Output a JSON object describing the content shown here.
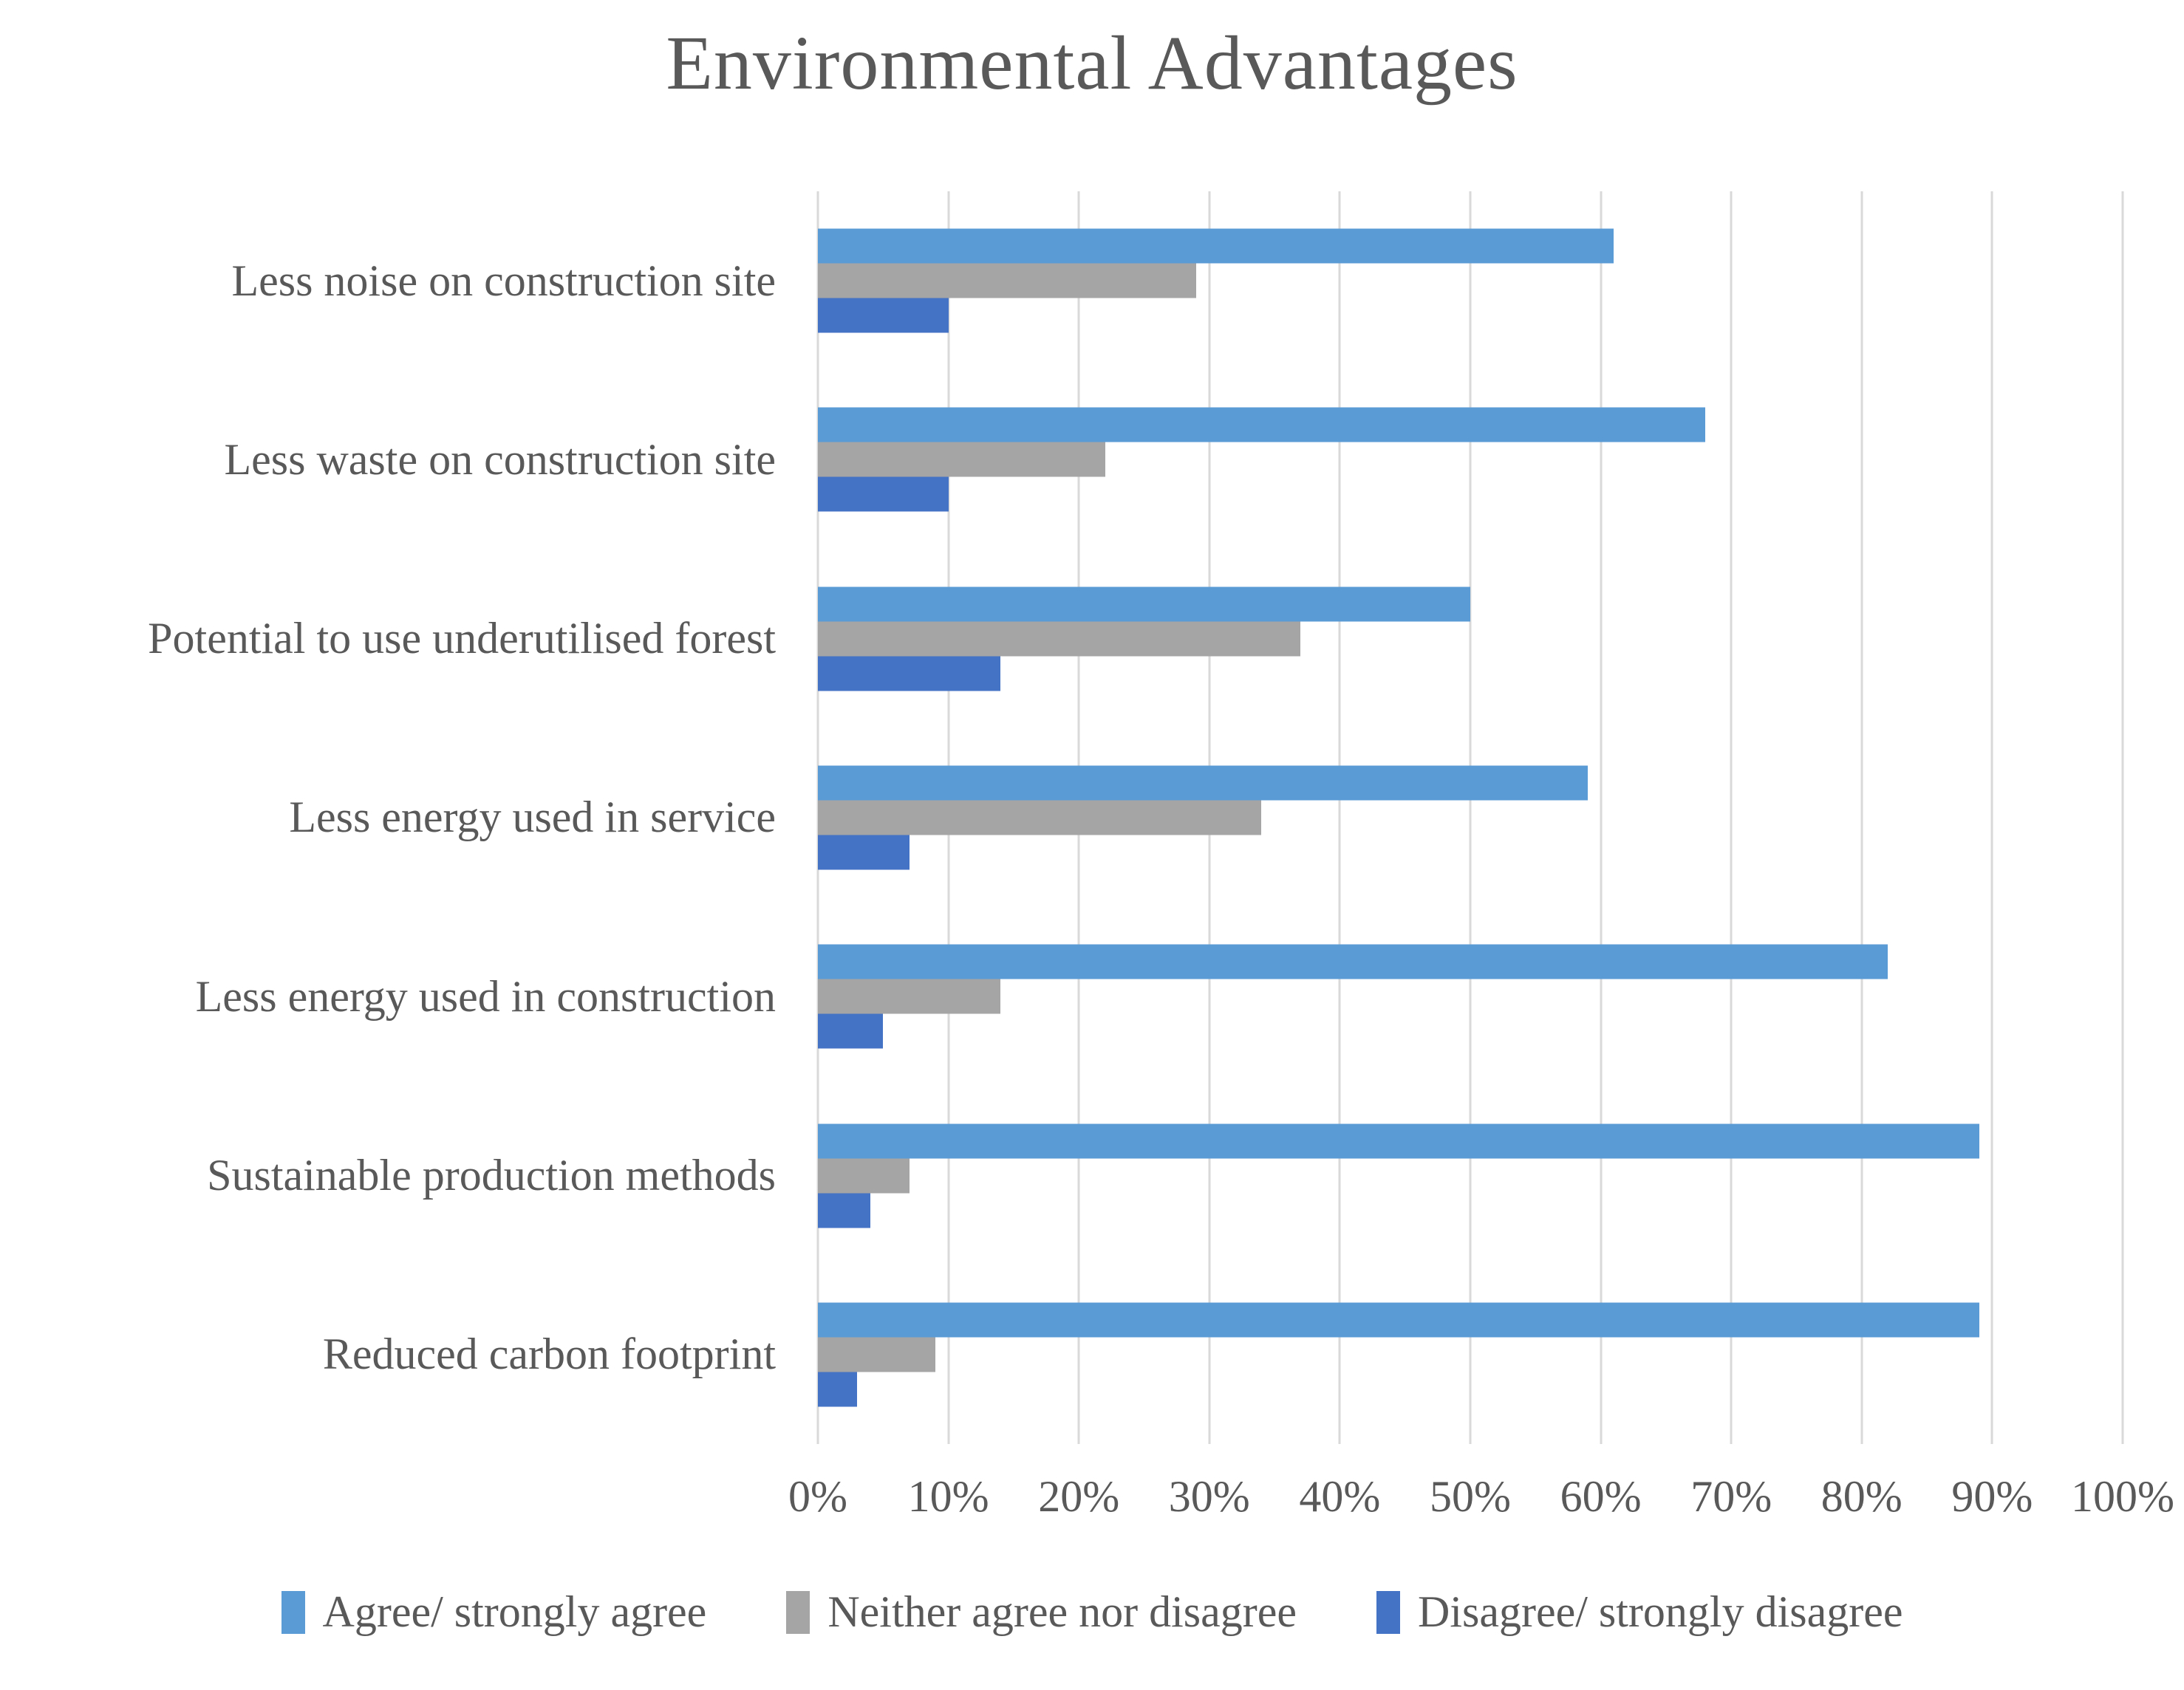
{
  "title": "Environmental Advantages",
  "colors": {
    "text": "#595959",
    "gridline": "#D9D9D9",
    "agree": "#5B9BD5",
    "neither": "#A5A5A5",
    "disagree": "#4472C4"
  },
  "chart_data": {
    "type": "bar",
    "orientation": "horizontal",
    "title": "Environmental Advantages",
    "categories": [
      "Less noise on construction site",
      "Less waste on construction site",
      "Potential to use underutilised forest",
      "Less energy used in service",
      "Less energy used in construction",
      "Sustainable production methods",
      "Reduced carbon footprint"
    ],
    "series": [
      {
        "name": "Agree/ strongly agree",
        "color": "#5B9BD5",
        "values": [
          61,
          68,
          50,
          59,
          82,
          89,
          89
        ]
      },
      {
        "name": "Neither agree nor disagree",
        "color": "#A5A5A5",
        "values": [
          29,
          22,
          37,
          34,
          14,
          7,
          9
        ]
      },
      {
        "name": "Disagree/ strongly disagree",
        "color": "#4472C4",
        "values": [
          10,
          10,
          14,
          7,
          5,
          4,
          3
        ]
      }
    ],
    "x_axis": {
      "min": 0,
      "max": 100,
      "tick_step": 10,
      "ticks": [
        "0%",
        "10%",
        "20%",
        "30%",
        "40%",
        "50%",
        "60%",
        "70%",
        "80%",
        "90%",
        "100%"
      ],
      "grid": true
    },
    "legend_position": "bottom",
    "value_unit": "percent"
  }
}
